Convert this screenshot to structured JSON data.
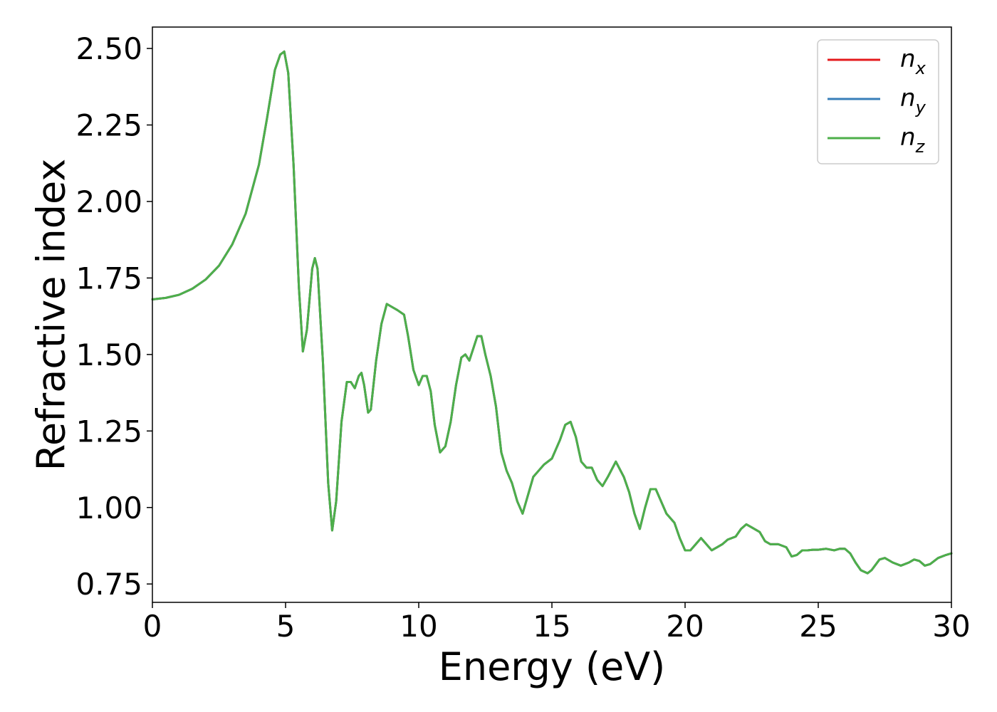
{
  "chart_data": {
    "type": "line",
    "title": "",
    "xlabel": "Energy (eV)",
    "ylabel": "Refractive index",
    "xlim": [
      0,
      30
    ],
    "ylim": [
      0.69,
      2.57
    ],
    "xticks": [
      0,
      5,
      10,
      15,
      20,
      25,
      30
    ],
    "xtick_labels": [
      "0",
      "5",
      "10",
      "15",
      "20",
      "25",
      "30"
    ],
    "yticks": [
      0.75,
      1.0,
      1.25,
      1.5,
      1.75,
      2.0,
      2.25,
      2.5
    ],
    "ytick_labels": [
      "0.75",
      "1.00",
      "1.25",
      "1.50",
      "1.75",
      "2.00",
      "2.25",
      "2.50"
    ],
    "grid": false,
    "legend_position": "top-right",
    "series": [
      {
        "name": "n_x",
        "label_main": "n",
        "label_sub": "x",
        "color": "#e41a1c",
        "x": [
          0,
          0.5,
          1,
          1.5,
          2,
          2.5,
          3,
          3.5,
          4,
          4.3,
          4.6,
          4.8,
          4.95,
          5.1,
          5.3,
          5.5,
          5.65,
          5.8,
          6.0,
          6.1,
          6.2,
          6.4,
          6.6,
          6.75,
          6.9,
          7.1,
          7.3,
          7.45,
          7.6,
          7.75,
          7.85,
          7.95,
          8.1,
          8.2,
          8.4,
          8.6,
          8.8,
          9.0,
          9.2,
          9.45,
          9.6,
          9.8,
          10.0,
          10.15,
          10.3,
          10.45,
          10.6,
          10.8,
          11.0,
          11.2,
          11.4,
          11.6,
          11.75,
          11.9,
          12.05,
          12.2,
          12.35,
          12.5,
          12.7,
          12.9,
          13.1,
          13.3,
          13.5,
          13.7,
          13.9,
          14.1,
          14.3,
          14.5,
          14.7,
          15.0,
          15.3,
          15.5,
          15.7,
          15.9,
          16.1,
          16.3,
          16.5,
          16.7,
          16.9,
          17.1,
          17.4,
          17.7,
          17.9,
          18.1,
          18.3,
          18.5,
          18.7,
          18.9,
          19.1,
          19.3,
          19.6,
          19.8,
          20.0,
          20.2,
          20.4,
          20.6,
          20.8,
          21.0,
          21.2,
          21.4,
          21.6,
          21.9,
          22.1,
          22.3,
          22.5,
          22.8,
          23.0,
          23.2,
          23.5,
          23.8,
          24.0,
          24.2,
          24.4,
          24.6,
          24.8,
          25.0,
          25.3,
          25.6,
          25.8,
          26.0,
          26.2,
          26.4,
          26.6,
          26.85,
          27.0,
          27.3,
          27.5,
          27.8,
          28.1,
          28.4,
          28.6,
          28.8,
          29.0,
          29.2,
          29.5,
          29.8,
          30.0
        ],
        "y": [
          1.68,
          1.685,
          1.695,
          1.715,
          1.745,
          1.79,
          1.86,
          1.96,
          2.12,
          2.27,
          2.43,
          2.48,
          2.49,
          2.42,
          2.12,
          1.72,
          1.51,
          1.58,
          1.78,
          1.815,
          1.78,
          1.48,
          1.08,
          0.925,
          1.02,
          1.28,
          1.41,
          1.41,
          1.39,
          1.43,
          1.44,
          1.4,
          1.31,
          1.32,
          1.48,
          1.6,
          1.665,
          1.655,
          1.645,
          1.63,
          1.56,
          1.45,
          1.4,
          1.43,
          1.43,
          1.38,
          1.27,
          1.18,
          1.2,
          1.28,
          1.4,
          1.49,
          1.5,
          1.48,
          1.52,
          1.56,
          1.56,
          1.5,
          1.43,
          1.33,
          1.18,
          1.12,
          1.08,
          1.02,
          0.98,
          1.04,
          1.1,
          1.12,
          1.14,
          1.16,
          1.22,
          1.27,
          1.28,
          1.23,
          1.15,
          1.13,
          1.13,
          1.09,
          1.07,
          1.1,
          1.15,
          1.1,
          1.05,
          0.98,
          0.93,
          1.0,
          1.06,
          1.06,
          1.02,
          0.98,
          0.95,
          0.9,
          0.86,
          0.86,
          0.88,
          0.9,
          0.88,
          0.86,
          0.87,
          0.88,
          0.895,
          0.905,
          0.93,
          0.945,
          0.935,
          0.92,
          0.89,
          0.88,
          0.88,
          0.87,
          0.84,
          0.845,
          0.86,
          0.86,
          0.862,
          0.862,
          0.865,
          0.86,
          0.865,
          0.865,
          0.85,
          0.82,
          0.795,
          0.785,
          0.795,
          0.83,
          0.835,
          0.82,
          0.81,
          0.82,
          0.83,
          0.825,
          0.81,
          0.815,
          0.835,
          0.845,
          0.85
        ]
      },
      {
        "name": "n_y",
        "label_main": "n",
        "label_sub": "y",
        "color": "#377eb8",
        "x": [
          0,
          0.5,
          1,
          1.5,
          2,
          2.5,
          3,
          3.5,
          4,
          4.3,
          4.6,
          4.8,
          4.95,
          5.1,
          5.3,
          5.5,
          5.65,
          5.8,
          6.0,
          6.1,
          6.2,
          6.4,
          6.6,
          6.75,
          6.9,
          7.1,
          7.3,
          7.45,
          7.6,
          7.75,
          7.85,
          7.95,
          8.1,
          8.2,
          8.4,
          8.6,
          8.8,
          9.0,
          9.2,
          9.45,
          9.6,
          9.8,
          10.0,
          10.15,
          10.3,
          10.45,
          10.6,
          10.8,
          11.0,
          11.2,
          11.4,
          11.6,
          11.75,
          11.9,
          12.05,
          12.2,
          12.35,
          12.5,
          12.7,
          12.9,
          13.1,
          13.3,
          13.5,
          13.7,
          13.9,
          14.1,
          14.3,
          14.5,
          14.7,
          15.0,
          15.3,
          15.5,
          15.7,
          15.9,
          16.1,
          16.3,
          16.5,
          16.7,
          16.9,
          17.1,
          17.4,
          17.7,
          17.9,
          18.1,
          18.3,
          18.5,
          18.7,
          18.9,
          19.1,
          19.3,
          19.6,
          19.8,
          20.0,
          20.2,
          20.4,
          20.6,
          20.8,
          21.0,
          21.2,
          21.4,
          21.6,
          21.9,
          22.1,
          22.3,
          22.5,
          22.8,
          23.0,
          23.2,
          23.5,
          23.8,
          24.0,
          24.2,
          24.4,
          24.6,
          24.8,
          25.0,
          25.3,
          25.6,
          25.8,
          26.0,
          26.2,
          26.4,
          26.6,
          26.85,
          27.0,
          27.3,
          27.5,
          27.8,
          28.1,
          28.4,
          28.6,
          28.8,
          29.0,
          29.2,
          29.5,
          29.8,
          30.0
        ],
        "y": [
          1.68,
          1.685,
          1.695,
          1.715,
          1.745,
          1.79,
          1.86,
          1.96,
          2.12,
          2.27,
          2.43,
          2.48,
          2.49,
          2.42,
          2.12,
          1.72,
          1.51,
          1.58,
          1.78,
          1.815,
          1.78,
          1.48,
          1.08,
          0.925,
          1.02,
          1.28,
          1.41,
          1.41,
          1.39,
          1.43,
          1.44,
          1.4,
          1.31,
          1.32,
          1.48,
          1.6,
          1.665,
          1.655,
          1.645,
          1.63,
          1.56,
          1.45,
          1.4,
          1.43,
          1.43,
          1.38,
          1.27,
          1.18,
          1.2,
          1.28,
          1.4,
          1.49,
          1.5,
          1.48,
          1.52,
          1.56,
          1.56,
          1.5,
          1.43,
          1.33,
          1.18,
          1.12,
          1.08,
          1.02,
          0.98,
          1.04,
          1.1,
          1.12,
          1.14,
          1.16,
          1.22,
          1.27,
          1.28,
          1.23,
          1.15,
          1.13,
          1.13,
          1.09,
          1.07,
          1.1,
          1.15,
          1.1,
          1.05,
          0.98,
          0.93,
          1.0,
          1.06,
          1.06,
          1.02,
          0.98,
          0.95,
          0.9,
          0.86,
          0.86,
          0.88,
          0.9,
          0.88,
          0.86,
          0.87,
          0.88,
          0.895,
          0.905,
          0.93,
          0.945,
          0.935,
          0.92,
          0.89,
          0.88,
          0.88,
          0.87,
          0.84,
          0.845,
          0.86,
          0.86,
          0.862,
          0.862,
          0.865,
          0.86,
          0.865,
          0.865,
          0.85,
          0.82,
          0.795,
          0.785,
          0.795,
          0.83,
          0.835,
          0.82,
          0.81,
          0.82,
          0.83,
          0.825,
          0.81,
          0.815,
          0.835,
          0.845,
          0.85
        ]
      },
      {
        "name": "n_z",
        "label_main": "n",
        "label_sub": "z",
        "color": "#4daf4a",
        "x": [
          0,
          0.5,
          1,
          1.5,
          2,
          2.5,
          3,
          3.5,
          4,
          4.3,
          4.6,
          4.8,
          4.95,
          5.1,
          5.3,
          5.5,
          5.65,
          5.8,
          6.0,
          6.1,
          6.2,
          6.4,
          6.6,
          6.75,
          6.9,
          7.1,
          7.3,
          7.45,
          7.6,
          7.75,
          7.85,
          7.95,
          8.1,
          8.2,
          8.4,
          8.6,
          8.8,
          9.0,
          9.2,
          9.45,
          9.6,
          9.8,
          10.0,
          10.15,
          10.3,
          10.45,
          10.6,
          10.8,
          11.0,
          11.2,
          11.4,
          11.6,
          11.75,
          11.9,
          12.05,
          12.2,
          12.35,
          12.5,
          12.7,
          12.9,
          13.1,
          13.3,
          13.5,
          13.7,
          13.9,
          14.1,
          14.3,
          14.5,
          14.7,
          15.0,
          15.3,
          15.5,
          15.7,
          15.9,
          16.1,
          16.3,
          16.5,
          16.7,
          16.9,
          17.1,
          17.4,
          17.7,
          17.9,
          18.1,
          18.3,
          18.5,
          18.7,
          18.9,
          19.1,
          19.3,
          19.6,
          19.8,
          20.0,
          20.2,
          20.4,
          20.6,
          20.8,
          21.0,
          21.2,
          21.4,
          21.6,
          21.9,
          22.1,
          22.3,
          22.5,
          22.8,
          23.0,
          23.2,
          23.5,
          23.8,
          24.0,
          24.2,
          24.4,
          24.6,
          24.8,
          25.0,
          25.3,
          25.6,
          25.8,
          26.0,
          26.2,
          26.4,
          26.6,
          26.85,
          27.0,
          27.3,
          27.5,
          27.8,
          28.1,
          28.4,
          28.6,
          28.8,
          29.0,
          29.2,
          29.5,
          29.8,
          30.0
        ],
        "y": [
          1.68,
          1.685,
          1.695,
          1.715,
          1.745,
          1.79,
          1.86,
          1.96,
          2.12,
          2.27,
          2.43,
          2.48,
          2.49,
          2.42,
          2.12,
          1.72,
          1.51,
          1.58,
          1.78,
          1.815,
          1.78,
          1.48,
          1.08,
          0.925,
          1.02,
          1.28,
          1.41,
          1.41,
          1.39,
          1.43,
          1.44,
          1.4,
          1.31,
          1.32,
          1.48,
          1.6,
          1.665,
          1.655,
          1.645,
          1.63,
          1.56,
          1.45,
          1.4,
          1.43,
          1.43,
          1.38,
          1.27,
          1.18,
          1.2,
          1.28,
          1.4,
          1.49,
          1.5,
          1.48,
          1.52,
          1.56,
          1.56,
          1.5,
          1.43,
          1.33,
          1.18,
          1.12,
          1.08,
          1.02,
          0.98,
          1.04,
          1.1,
          1.12,
          1.14,
          1.16,
          1.22,
          1.27,
          1.28,
          1.23,
          1.15,
          1.13,
          1.13,
          1.09,
          1.07,
          1.1,
          1.15,
          1.1,
          1.05,
          0.98,
          0.93,
          1.0,
          1.06,
          1.06,
          1.02,
          0.98,
          0.95,
          0.9,
          0.86,
          0.86,
          0.88,
          0.9,
          0.88,
          0.86,
          0.87,
          0.88,
          0.895,
          0.905,
          0.93,
          0.945,
          0.935,
          0.92,
          0.89,
          0.88,
          0.88,
          0.87,
          0.84,
          0.845,
          0.86,
          0.86,
          0.862,
          0.862,
          0.865,
          0.86,
          0.865,
          0.865,
          0.85,
          0.82,
          0.795,
          0.785,
          0.795,
          0.83,
          0.835,
          0.82,
          0.81,
          0.82,
          0.83,
          0.825,
          0.81,
          0.815,
          0.835,
          0.845,
          0.85
        ]
      }
    ]
  }
}
